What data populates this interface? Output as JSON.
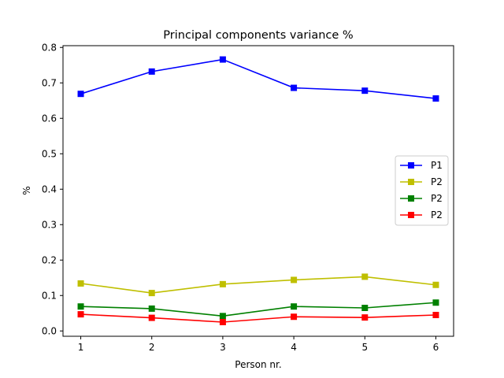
{
  "chart_data": {
    "type": "line",
    "title": "Principal components variance %",
    "xlabel": "Person nr.",
    "ylabel": "%",
    "x": [
      1,
      2,
      3,
      4,
      5,
      6
    ],
    "xlim": [
      0.75,
      6.25
    ],
    "ylim": [
      -0.015,
      0.805
    ],
    "xticks": [
      "1",
      "2",
      "3",
      "4",
      "5",
      "6"
    ],
    "yticks": [
      "0.0",
      "0.1",
      "0.2",
      "0.3",
      "0.4",
      "0.5",
      "0.6",
      "0.7",
      "0.8"
    ],
    "grid": false,
    "legend_position": "center-right",
    "marker": "square",
    "series": [
      {
        "name": "P1",
        "color": "#0000ff",
        "values": [
          0.669,
          0.732,
          0.766,
          0.686,
          0.678,
          0.656
        ]
      },
      {
        "name": "P2",
        "color": "#bfbf00",
        "values": [
          0.134,
          0.107,
          0.132,
          0.144,
          0.153,
          0.13
        ]
      },
      {
        "name": "P2",
        "color": "#008000",
        "values": [
          0.069,
          0.063,
          0.042,
          0.069,
          0.065,
          0.08
        ]
      },
      {
        "name": "P2",
        "color": "#ff0000",
        "values": [
          0.047,
          0.037,
          0.025,
          0.04,
          0.038,
          0.045
        ]
      }
    ]
  }
}
